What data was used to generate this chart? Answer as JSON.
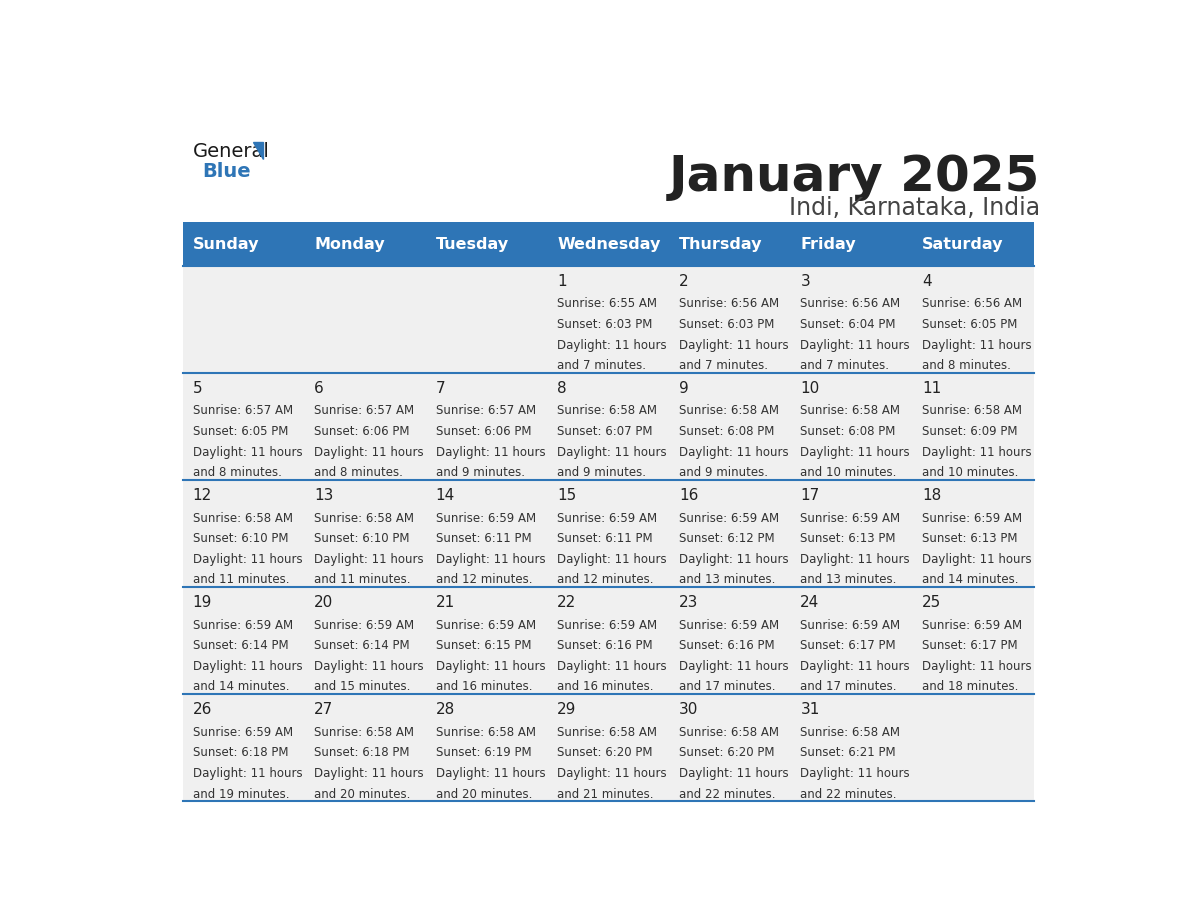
{
  "title": "January 2025",
  "subtitle": "Indi, Karnataka, India",
  "header_bg": "#2E75B6",
  "header_text_color": "#FFFFFF",
  "cell_bg_light": "#F0F0F0",
  "day_names": [
    "Sunday",
    "Monday",
    "Tuesday",
    "Wednesday",
    "Thursday",
    "Friday",
    "Saturday"
  ],
  "title_color": "#222222",
  "subtitle_color": "#444444",
  "border_color": "#2E75B6",
  "days": [
    {
      "day": 1,
      "col": 3,
      "row": 0,
      "sunrise": "6:55 AM",
      "sunset": "6:03 PM",
      "daylight": "11 hours and 7 minutes."
    },
    {
      "day": 2,
      "col": 4,
      "row": 0,
      "sunrise": "6:56 AM",
      "sunset": "6:03 PM",
      "daylight": "11 hours and 7 minutes."
    },
    {
      "day": 3,
      "col": 5,
      "row": 0,
      "sunrise": "6:56 AM",
      "sunset": "6:04 PM",
      "daylight": "11 hours and 7 minutes."
    },
    {
      "day": 4,
      "col": 6,
      "row": 0,
      "sunrise": "6:56 AM",
      "sunset": "6:05 PM",
      "daylight": "11 hours and 8 minutes."
    },
    {
      "day": 5,
      "col": 0,
      "row": 1,
      "sunrise": "6:57 AM",
      "sunset": "6:05 PM",
      "daylight": "11 hours and 8 minutes."
    },
    {
      "day": 6,
      "col": 1,
      "row": 1,
      "sunrise": "6:57 AM",
      "sunset": "6:06 PM",
      "daylight": "11 hours and 8 minutes."
    },
    {
      "day": 7,
      "col": 2,
      "row": 1,
      "sunrise": "6:57 AM",
      "sunset": "6:06 PM",
      "daylight": "11 hours and 9 minutes."
    },
    {
      "day": 8,
      "col": 3,
      "row": 1,
      "sunrise": "6:58 AM",
      "sunset": "6:07 PM",
      "daylight": "11 hours and 9 minutes."
    },
    {
      "day": 9,
      "col": 4,
      "row": 1,
      "sunrise": "6:58 AM",
      "sunset": "6:08 PM",
      "daylight": "11 hours and 9 minutes."
    },
    {
      "day": 10,
      "col": 5,
      "row": 1,
      "sunrise": "6:58 AM",
      "sunset": "6:08 PM",
      "daylight": "11 hours and 10 minutes."
    },
    {
      "day": 11,
      "col": 6,
      "row": 1,
      "sunrise": "6:58 AM",
      "sunset": "6:09 PM",
      "daylight": "11 hours and 10 minutes."
    },
    {
      "day": 12,
      "col": 0,
      "row": 2,
      "sunrise": "6:58 AM",
      "sunset": "6:10 PM",
      "daylight": "11 hours and 11 minutes."
    },
    {
      "day": 13,
      "col": 1,
      "row": 2,
      "sunrise": "6:58 AM",
      "sunset": "6:10 PM",
      "daylight": "11 hours and 11 minutes."
    },
    {
      "day": 14,
      "col": 2,
      "row": 2,
      "sunrise": "6:59 AM",
      "sunset": "6:11 PM",
      "daylight": "11 hours and 12 minutes."
    },
    {
      "day": 15,
      "col": 3,
      "row": 2,
      "sunrise": "6:59 AM",
      "sunset": "6:11 PM",
      "daylight": "11 hours and 12 minutes."
    },
    {
      "day": 16,
      "col": 4,
      "row": 2,
      "sunrise": "6:59 AM",
      "sunset": "6:12 PM",
      "daylight": "11 hours and 13 minutes."
    },
    {
      "day": 17,
      "col": 5,
      "row": 2,
      "sunrise": "6:59 AM",
      "sunset": "6:13 PM",
      "daylight": "11 hours and 13 minutes."
    },
    {
      "day": 18,
      "col": 6,
      "row": 2,
      "sunrise": "6:59 AM",
      "sunset": "6:13 PM",
      "daylight": "11 hours and 14 minutes."
    },
    {
      "day": 19,
      "col": 0,
      "row": 3,
      "sunrise": "6:59 AM",
      "sunset": "6:14 PM",
      "daylight": "11 hours and 14 minutes."
    },
    {
      "day": 20,
      "col": 1,
      "row": 3,
      "sunrise": "6:59 AM",
      "sunset": "6:14 PM",
      "daylight": "11 hours and 15 minutes."
    },
    {
      "day": 21,
      "col": 2,
      "row": 3,
      "sunrise": "6:59 AM",
      "sunset": "6:15 PM",
      "daylight": "11 hours and 16 minutes."
    },
    {
      "day": 22,
      "col": 3,
      "row": 3,
      "sunrise": "6:59 AM",
      "sunset": "6:16 PM",
      "daylight": "11 hours and 16 minutes."
    },
    {
      "day": 23,
      "col": 4,
      "row": 3,
      "sunrise": "6:59 AM",
      "sunset": "6:16 PM",
      "daylight": "11 hours and 17 minutes."
    },
    {
      "day": 24,
      "col": 5,
      "row": 3,
      "sunrise": "6:59 AM",
      "sunset": "6:17 PM",
      "daylight": "11 hours and 17 minutes."
    },
    {
      "day": 25,
      "col": 6,
      "row": 3,
      "sunrise": "6:59 AM",
      "sunset": "6:17 PM",
      "daylight": "11 hours and 18 minutes."
    },
    {
      "day": 26,
      "col": 0,
      "row": 4,
      "sunrise": "6:59 AM",
      "sunset": "6:18 PM",
      "daylight": "11 hours and 19 minutes."
    },
    {
      "day": 27,
      "col": 1,
      "row": 4,
      "sunrise": "6:58 AM",
      "sunset": "6:18 PM",
      "daylight": "11 hours and 20 minutes."
    },
    {
      "day": 28,
      "col": 2,
      "row": 4,
      "sunrise": "6:58 AM",
      "sunset": "6:19 PM",
      "daylight": "11 hours and 20 minutes."
    },
    {
      "day": 29,
      "col": 3,
      "row": 4,
      "sunrise": "6:58 AM",
      "sunset": "6:20 PM",
      "daylight": "11 hours and 21 minutes."
    },
    {
      "day": 30,
      "col": 4,
      "row": 4,
      "sunrise": "6:58 AM",
      "sunset": "6:20 PM",
      "daylight": "11 hours and 22 minutes."
    },
    {
      "day": 31,
      "col": 5,
      "row": 4,
      "sunrise": "6:58 AM",
      "sunset": "6:21 PM",
      "daylight": "11 hours and 22 minutes."
    }
  ]
}
